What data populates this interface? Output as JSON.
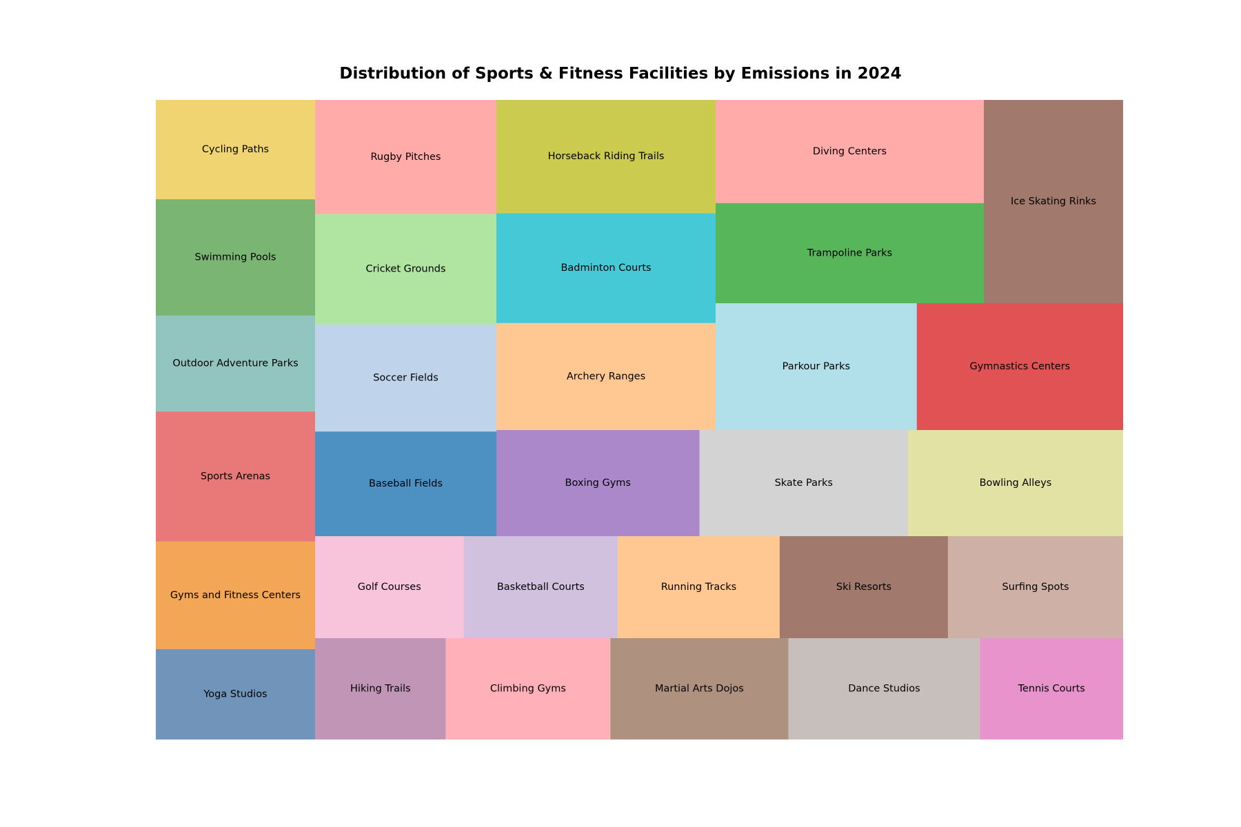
{
  "chart_data": {
    "type": "treemap",
    "title": "Distribution of Sports & Fitness Facilities by Emissions in 2024",
    "columns": [
      {
        "items": [
          {
            "label": "Cycling Paths",
            "value": 14.5,
            "color": "#F0D472"
          },
          {
            "label": "Swimming Pools",
            "value": 17,
            "color": "#7BB573"
          },
          {
            "label": "Outdoor Adventure Parks",
            "value": 14,
            "color": "#92C5BF"
          },
          {
            "label": "Sports Arenas",
            "value": 19,
            "color": "#E87978"
          },
          {
            "label": "Gyms and Fitness Centers",
            "value": 15.7,
            "color": "#F3A655"
          },
          {
            "label": "Yoga Studios",
            "value": 13.2,
            "color": "#7194BA"
          }
        ]
      },
      {
        "items": [
          {
            "label": "Rugby Pitches",
            "value": 19.4,
            "color": "#FFABAA"
          },
          {
            "label": "Cricket Grounds",
            "value": 18.8,
            "color": "#AFE4A1"
          },
          {
            "label": "Soccer Fields",
            "value": 18.2,
            "color": "#BFD3EA"
          },
          {
            "label": "Baseball Fields",
            "value": 17.8,
            "color": "#4C91C2"
          }
        ]
      },
      {
        "items": [
          {
            "label": "Horseback Riding Trails",
            "value": 23.1,
            "color": "#CBCB4F"
          },
          {
            "label": "Badminton Courts",
            "value": 22.4,
            "color": "#46C9D6"
          },
          {
            "label": "Archery Ranges",
            "value": 21.8,
            "color": "#FFC892"
          }
        ]
      },
      {
        "items": [
          {
            "label": "Diving Centers",
            "value": 20.9,
            "color": "#FFABAA"
          },
          {
            "label": "Trampoline Parks",
            "value": 20.3,
            "color": "#57B55A"
          }
        ]
      },
      {
        "items": [
          {
            "label": "Ice Skating Rinks",
            "value": 21,
            "color": "#A1796D"
          }
        ]
      },
      {
        "items": [
          {
            "label": "Parkour Parks",
            "value": 19.2,
            "color": "#B2E0EA"
          },
          {
            "label": "Gymnastics Centers",
            "value": 19.7,
            "color": "#E05253"
          }
        ]
      },
      {
        "items": [
          {
            "label": "Boxing Gyms",
            "value": 18.5,
            "color": "#AA88CA"
          },
          {
            "label": "Skate Parks",
            "value": 19,
            "color": "#D3D3D3"
          },
          {
            "label": "Bowling Alleys",
            "value": 19.6,
            "color": "#E2E2A5"
          }
        ]
      },
      {
        "items": [
          {
            "label": "Golf Courses",
            "value": 13.5,
            "color": "#F7C4DC"
          },
          {
            "label": "Basketball Courts",
            "value": 14,
            "color": "#D2C1DE"
          },
          {
            "label": "Running Tracks",
            "value": 14.7,
            "color": "#FFC892"
          },
          {
            "label": "Ski Resorts",
            "value": 15.3,
            "color": "#A1796D"
          },
          {
            "label": "Surfing Spots",
            "value": 15.9,
            "color": "#CEB0A7"
          }
        ]
      },
      {
        "items": [
          {
            "label": "Hiking Trails",
            "value": 11.6,
            "color": "#C195B6"
          },
          {
            "label": "Climbing Gyms",
            "value": 14.6,
            "color": "#FFB0B9"
          },
          {
            "label": "Martial Arts Dojos",
            "value": 15.8,
            "color": "#AF9180"
          },
          {
            "label": "Dance Studios",
            "value": 17,
            "color": "#C7BFBB"
          },
          {
            "label": "Tennis Courts",
            "value": 12.7,
            "color": "#E893CC"
          }
        ]
      }
    ]
  }
}
